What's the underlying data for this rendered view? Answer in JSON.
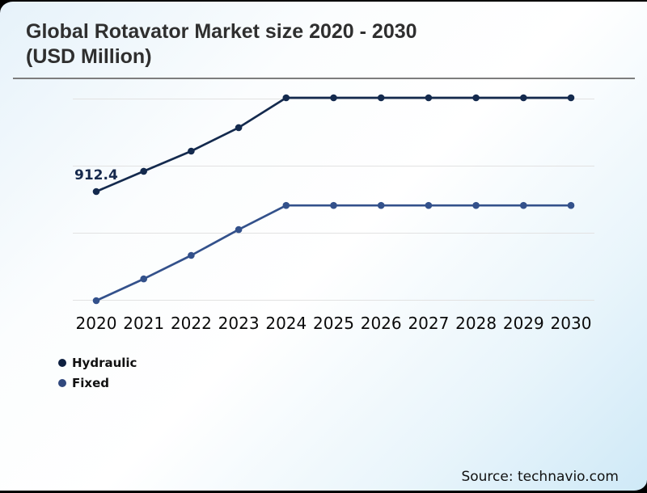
{
  "page": {
    "title_line1": "Global Rotavator Market size 2020 - 2030",
    "title_line2": "(USD Million)",
    "source": "Source: technavio.com"
  },
  "legend": {
    "items": [
      {
        "label": "Hydraulic",
        "color": "#0e2040"
      },
      {
        "label": "Fixed",
        "color": "#31497e"
      }
    ]
  },
  "chart_data": {
    "type": "line",
    "title": "Global Rotavator Market size 2020 - 2030 (USD Million)",
    "xlabel": "",
    "ylabel": "",
    "grid": true,
    "legend_position": "bottom-left",
    "value_axis_labels_shown": false,
    "categories": [
      "2020",
      "2021",
      "2022",
      "2023",
      "2024",
      "2025",
      "2026",
      "2027",
      "2028",
      "2029",
      "2030"
    ],
    "series": [
      {
        "name": "Hydraulic",
        "color": "#142a4e",
        "values": [
          912.4,
          973,
          1033,
          1103,
          1192,
          1192,
          1192,
          1192,
          1192,
          1192,
          1192
        ]
      },
      {
        "name": "Fixed",
        "color": "#33518b",
        "values": [
          587,
          652,
          722,
          799,
          871,
          871,
          871,
          871,
          871,
          871,
          871
        ]
      }
    ],
    "annotations": [
      {
        "series": "Hydraulic",
        "x": "2020",
        "text": "912.4"
      }
    ]
  }
}
